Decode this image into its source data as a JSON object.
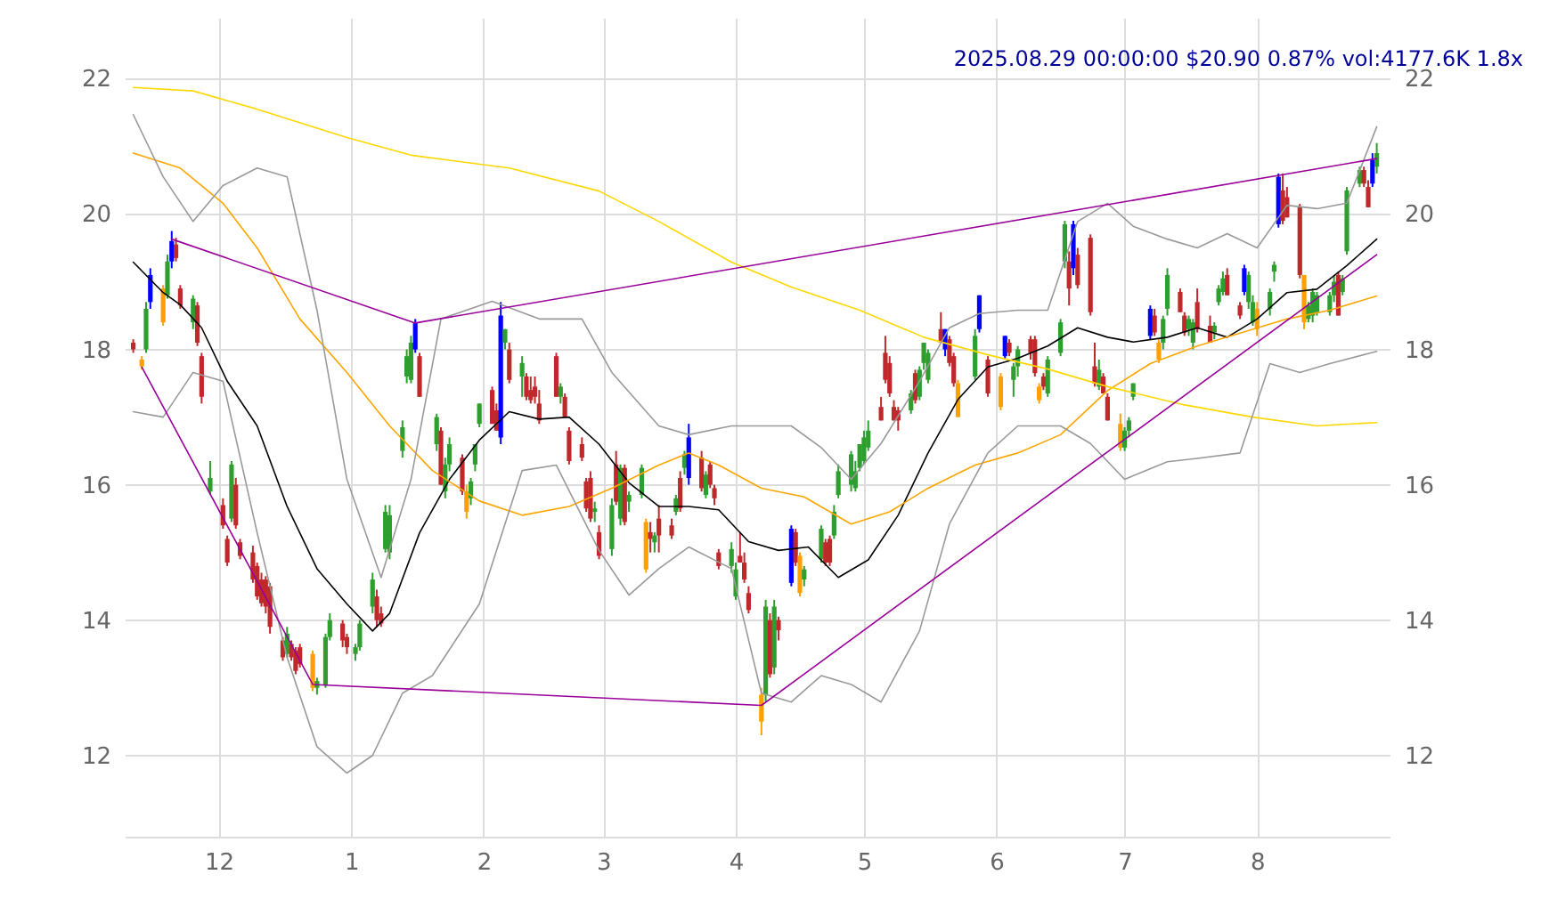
{
  "chart_data": {
    "type": "candlestick",
    "title": "2025.08.29 00:00:00 $20.90 0.87% vol:4177.6K 1.8x",
    "x": [
      "2024-11-11",
      "2024-11-13",
      "2024-11-14",
      "2024-11-15",
      "2024-11-18",
      "2024-11-19",
      "2024-11-20",
      "2024-11-21",
      "2024-11-22",
      "2024-11-25",
      "2024-11-26",
      "2024-11-27",
      "2024-11-29",
      "2024-12-02",
      "2024-12-03",
      "2024-12-04",
      "2024-12-05",
      "2024-12-06",
      "2024-12-09",
      "2024-12-10",
      "2024-12-11",
      "2024-12-12",
      "2024-12-13",
      "2024-12-16",
      "2024-12-17",
      "2024-12-18",
      "2024-12-19",
      "2024-12-20",
      "2024-12-23",
      "2024-12-24",
      "2024-12-26",
      "2024-12-27",
      "2024-12-30",
      "2024-12-31",
      "2025-01-02",
      "2025-01-03",
      "2025-01-06",
      "2025-01-07",
      "2025-01-08",
      "2025-01-09",
      "2025-01-10",
      "2025-01-13",
      "2025-01-14",
      "2025-01-15",
      "2025-01-16",
      "2025-01-17",
      "2025-01-21",
      "2025-01-22",
      "2025-01-23",
      "2025-01-24",
      "2025-01-27",
      "2025-01-28",
      "2025-01-29",
      "2025-01-30",
      "2025-01-31",
      "2025-02-03",
      "2025-02-04",
      "2025-02-05",
      "2025-02-06",
      "2025-02-07",
      "2025-02-10",
      "2025-02-11",
      "2025-02-12",
      "2025-02-13",
      "2025-02-14",
      "2025-02-18",
      "2025-02-19",
      "2025-02-20",
      "2025-02-21",
      "2025-02-24",
      "2025-02-25",
      "2025-02-26",
      "2025-02-27",
      "2025-02-28",
      "2025-03-03",
      "2025-03-04",
      "2025-03-05",
      "2025-03-06",
      "2025-03-07",
      "2025-03-10",
      "2025-03-11",
      "2025-03-12",
      "2025-03-13",
      "2025-03-14",
      "2025-03-17",
      "2025-03-18",
      "2025-03-19",
      "2025-03-20",
      "2025-03-21",
      "2025-03-24",
      "2025-03-25",
      "2025-03-26",
      "2025-03-27",
      "2025-03-28",
      "2025-03-31",
      "2025-04-01",
      "2025-04-02",
      "2025-04-03",
      "2025-04-04",
      "2025-04-07",
      "2025-04-08",
      "2025-04-09",
      "2025-04-10",
      "2025-04-11",
      "2025-04-14",
      "2025-04-15",
      "2025-04-16",
      "2025-04-17",
      "2025-04-21",
      "2025-04-22",
      "2025-04-23",
      "2025-04-24",
      "2025-04-25",
      "2025-04-28",
      "2025-04-29",
      "2025-04-30",
      "2025-05-01",
      "2025-05-02",
      "2025-05-05",
      "2025-05-06",
      "2025-05-07",
      "2025-05-08",
      "2025-05-09",
      "2025-05-12",
      "2025-05-13",
      "2025-05-14",
      "2025-05-15",
      "2025-05-16",
      "2025-05-19",
      "2025-05-20",
      "2025-05-21",
      "2025-05-22",
      "2025-05-23",
      "2025-05-27",
      "2025-05-28",
      "2025-05-30",
      "2025-06-02",
      "2025-06-03",
      "2025-06-04",
      "2025-06-05",
      "2025-06-06",
      "2025-06-09",
      "2025-06-10",
      "2025-06-11",
      "2025-06-12",
      "2025-06-13",
      "2025-06-16",
      "2025-06-17",
      "2025-06-18",
      "2025-06-19",
      "2025-06-20",
      "2025-06-23",
      "2025-06-24",
      "2025-06-25",
      "2025-06-26",
      "2025-06-27",
      "2025-06-30",
      "2025-07-01",
      "2025-07-02",
      "2025-07-03",
      "2025-07-07",
      "2025-07-08",
      "2025-07-09",
      "2025-07-10",
      "2025-07-11",
      "2025-07-14",
      "2025-07-15",
      "2025-07-16",
      "2025-07-17",
      "2025-07-18",
      "2025-07-21",
      "2025-07-22",
      "2025-07-23",
      "2025-07-24",
      "2025-07-25",
      "2025-07-28",
      "2025-07-29",
      "2025-07-30",
      "2025-07-31",
      "2025-08-01",
      "2025-08-04",
      "2025-08-05",
      "2025-08-06",
      "2025-08-07",
      "2025-08-08",
      "2025-08-11",
      "2025-08-12",
      "2025-08-13",
      "2025-08-14",
      "2025-08-15",
      "2025-08-18",
      "2025-08-19",
      "2025-08-20",
      "2025-08-21",
      "2025-08-22",
      "2025-08-25",
      "2025-08-26",
      "2025-08-27",
      "2025-08-28",
      "2025-08-29"
    ],
    "ohlc": [
      [
        18.1,
        18.15,
        17.95,
        18.0
      ],
      [
        17.85,
        17.9,
        17.7,
        17.75
      ],
      [
        18.0,
        18.7,
        17.95,
        18.6
      ],
      [
        18.7,
        19.2,
        18.6,
        19.1
      ],
      [
        18.9,
        18.95,
        18.35,
        18.4
      ],
      [
        18.8,
        19.4,
        18.75,
        19.3
      ],
      [
        19.3,
        19.75,
        19.2,
        19.6
      ],
      [
        19.55,
        19.65,
        19.3,
        19.35
      ],
      [
        18.9,
        18.95,
        18.6,
        18.65
      ],
      [
        18.4,
        18.8,
        18.3,
        18.75
      ],
      [
        18.65,
        18.7,
        18.05,
        18.1
      ],
      [
        17.9,
        17.95,
        17.2,
        17.3
      ],
      [
        15.9,
        16.35,
        15.85,
        16.1
      ],
      [
        15.7,
        15.8,
        15.35,
        15.4
      ],
      [
        15.2,
        15.25,
        14.8,
        14.85
      ],
      [
        15.5,
        16.35,
        15.45,
        16.3
      ],
      [
        16.0,
        16.1,
        15.35,
        15.4
      ],
      [
        15.15,
        15.2,
        14.9,
        14.95
      ],
      [
        15.0,
        15.1,
        14.55,
        14.6
      ],
      [
        14.8,
        14.85,
        14.3,
        14.35
      ],
      [
        14.6,
        14.7,
        14.2,
        14.25
      ],
      [
        14.6,
        14.65,
        14.1,
        14.2
      ],
      [
        14.5,
        14.55,
        13.8,
        13.9
      ],
      [
        13.7,
        13.75,
        13.4,
        13.45
      ],
      [
        13.5,
        13.9,
        13.45,
        13.8
      ],
      [
        13.65,
        13.7,
        13.4,
        13.45
      ],
      [
        13.55,
        13.6,
        13.2,
        13.25
      ],
      [
        13.6,
        13.65,
        13.3,
        13.35
      ],
      [
        13.5,
        13.55,
        12.95,
        13.0
      ],
      [
        13.0,
        13.15,
        12.9,
        13.1
      ],
      [
        13.05,
        13.8,
        13.0,
        13.75
      ],
      [
        13.75,
        14.1,
        13.7,
        14.0
      ],
      [
        13.95,
        14.0,
        13.6,
        13.7
      ],
      [
        13.75,
        13.8,
        13.5,
        13.6
      ],
      [
        13.5,
        13.65,
        13.4,
        13.6
      ],
      [
        13.6,
        14.0,
        13.55,
        13.95
      ],
      [
        14.2,
        14.7,
        14.1,
        14.6
      ],
      [
        14.35,
        14.45,
        13.9,
        14.0
      ],
      [
        14.1,
        14.2,
        13.9,
        13.95
      ],
      [
        15.05,
        15.7,
        15.0,
        15.6
      ],
      [
        15.0,
        15.7,
        14.9,
        15.55
      ],
      [
        16.5,
        16.95,
        16.4,
        16.85
      ],
      [
        17.6,
        18.0,
        17.5,
        17.9
      ],
      [
        17.55,
        18.2,
        17.5,
        18.1
      ],
      [
        18.0,
        18.45,
        17.95,
        18.4
      ],
      [
        17.9,
        17.95,
        17.3,
        17.3
      ],
      [
        16.6,
        17.05,
        16.5,
        17.0
      ],
      [
        16.8,
        16.85,
        16.0,
        16.0
      ],
      [
        15.9,
        16.4,
        15.8,
        16.3
      ],
      [
        16.3,
        16.7,
        16.2,
        16.6
      ],
      [
        16.4,
        16.45,
        15.85,
        15.9
      ],
      [
        15.9,
        16.0,
        15.5,
        15.6
      ],
      [
        15.8,
        16.1,
        15.7,
        16.05
      ],
      [
        16.3,
        16.6,
        16.2,
        16.6
      ],
      [
        16.9,
        17.2,
        16.85,
        17.2
      ],
      [
        17.4,
        17.45,
        16.9,
        16.9
      ],
      [
        17.1,
        17.2,
        16.8,
        16.8
      ],
      [
        16.7,
        18.7,
        16.6,
        18.5
      ],
      [
        18.1,
        18.3,
        18.0,
        18.3
      ],
      [
        18.0,
        18.1,
        17.5,
        17.55
      ],
      [
        17.6,
        17.9,
        17.3,
        17.8
      ],
      [
        17.6,
        17.65,
        17.25,
        17.3
      ],
      [
        17.4,
        17.6,
        17.2,
        17.25
      ],
      [
        17.45,
        17.6,
        17.2,
        17.3
      ],
      [
        17.2,
        17.4,
        16.9,
        16.95
      ],
      [
        17.9,
        17.95,
        17.3,
        17.3
      ],
      [
        17.3,
        17.5,
        17.2,
        17.45
      ],
      [
        17.3,
        17.35,
        17.0,
        17.0
      ],
      [
        16.8,
        16.85,
        16.3,
        16.35
      ],
      [
        16.6,
        16.7,
        16.35,
        16.4
      ],
      [
        16.05,
        16.1,
        15.6,
        15.65
      ],
      [
        16.1,
        16.2,
        15.45,
        15.5
      ],
      [
        15.6,
        15.75,
        15.45,
        15.65
      ],
      [
        15.3,
        15.4,
        14.9,
        14.95
      ],
      [
        15.05,
        15.8,
        14.95,
        15.7
      ],
      [
        16.3,
        16.5,
        15.7,
        15.75
      ],
      [
        15.5,
        16.3,
        15.4,
        16.25
      ],
      [
        16.25,
        16.3,
        15.4,
        15.45
      ],
      [
        15.75,
        15.9,
        15.6,
        15.85
      ],
      [
        15.85,
        16.3,
        15.8,
        16.25
      ],
      [
        15.45,
        15.5,
        14.7,
        14.75
      ],
      [
        15.3,
        15.45,
        15.0,
        15.2
      ],
      [
        15.15,
        15.3,
        15.0,
        15.25
      ],
      [
        15.5,
        15.7,
        15.0,
        15.25
      ],
      [
        15.4,
        15.5,
        15.2,
        15.25
      ],
      [
        15.6,
        15.85,
        15.55,
        15.8
      ],
      [
        16.1,
        16.2,
        15.6,
        15.65
      ],
      [
        16.25,
        16.5,
        16.15,
        16.45
      ],
      [
        16.1,
        16.9,
        16.0,
        16.7
      ],
      [
        16.4,
        16.5,
        15.9,
        15.95
      ],
      [
        15.85,
        16.2,
        15.8,
        16.15
      ],
      [
        16.3,
        16.35,
        15.95,
        16.0
      ],
      [
        15.95,
        16.0,
        15.7,
        15.8
      ],
      [
        15.0,
        15.05,
        14.75,
        14.8
      ],
      [
        14.8,
        15.15,
        14.7,
        15.05
      ],
      [
        14.35,
        14.85,
        14.3,
        14.75
      ],
      [
        14.95,
        15.3,
        14.85,
        14.85
      ],
      [
        14.85,
        15.0,
        14.55,
        14.6
      ],
      [
        14.4,
        14.5,
        14.1,
        14.15
      ],
      [
        12.9,
        13.0,
        12.3,
        12.5
      ],
      [
        12.9,
        14.3,
        12.8,
        14.2
      ],
      [
        14.0,
        14.1,
        13.15,
        13.2
      ],
      [
        13.3,
        14.3,
        13.2,
        14.2
      ],
      [
        14.0,
        14.05,
        13.7,
        13.85
      ],
      [
        14.55,
        15.4,
        14.5,
        15.35
      ],
      [
        15.3,
        15.35,
        14.8,
        14.85
      ],
      [
        14.95,
        15.0,
        14.35,
        14.4
      ],
      [
        14.6,
        14.8,
        14.5,
        14.75
      ],
      [
        14.9,
        15.4,
        14.85,
        15.35
      ],
      [
        15.15,
        15.2,
        14.8,
        14.85
      ],
      [
        15.2,
        15.25,
        14.8,
        14.85
      ],
      [
        15.25,
        15.7,
        15.2,
        15.6
      ],
      [
        15.85,
        16.3,
        15.8,
        16.2
      ],
      [
        16.0,
        16.5,
        15.9,
        16.45
      ],
      [
        15.95,
        16.35,
        15.9,
        16.2
      ],
      [
        16.25,
        16.6,
        16.2,
        16.6
      ],
      [
        16.35,
        16.8,
        16.3,
        16.7
      ],
      [
        16.55,
        16.95,
        16.5,
        16.8
      ],
      [
        17.15,
        17.3,
        16.95,
        16.95
      ],
      [
        17.95,
        18.2,
        17.5,
        17.55
      ],
      [
        17.8,
        17.9,
        17.3,
        17.35
      ],
      [
        17.15,
        17.25,
        16.95,
        16.95
      ],
      [
        17.1,
        17.15,
        16.8,
        16.95
      ],
      [
        17.1,
        17.4,
        17.05,
        17.35
      ],
      [
        17.65,
        17.7,
        17.2,
        17.25
      ],
      [
        17.3,
        17.75,
        17.25,
        17.7
      ],
      [
        17.8,
        18.1,
        17.7,
        18.1
      ],
      [
        17.55,
        18.0,
        17.5,
        17.95
      ],
      [
        18.3,
        18.55,
        18.1,
        18.1
      ],
      [
        18.0,
        18.3,
        17.9,
        18.3
      ],
      [
        18.15,
        18.2,
        17.75,
        17.8
      ],
      [
        17.9,
        17.95,
        17.45,
        17.5
      ],
      [
        17.5,
        17.55,
        17.0,
        17.0
      ],
      [
        17.6,
        18.3,
        17.55,
        18.2
      ],
      [
        18.3,
        18.8,
        18.25,
        18.8
      ],
      [
        17.85,
        17.9,
        17.3,
        17.35
      ],
      [
        17.6,
        17.65,
        17.1,
        17.15
      ],
      [
        17.9,
        18.2,
        17.85,
        18.2
      ],
      [
        18.1,
        18.15,
        17.9,
        17.95
      ],
      [
        17.55,
        17.8,
        17.3,
        17.75
      ],
      [
        17.75,
        18.05,
        17.6,
        18.0
      ],
      [
        18.15,
        18.2,
        17.85,
        17.95
      ],
      [
        18.15,
        18.2,
        17.6,
        17.65
      ],
      [
        17.45,
        17.5,
        17.2,
        17.25
      ],
      [
        17.6,
        17.65,
        17.4,
        17.45
      ],
      [
        17.35,
        17.9,
        17.3,
        17.85
      ],
      [
        17.95,
        18.45,
        17.9,
        18.4
      ],
      [
        19.3,
        19.9,
        19.2,
        19.85
      ],
      [
        19.3,
        19.45,
        18.65,
        18.9
      ],
      [
        19.2,
        19.9,
        19.1,
        19.85
      ],
      [
        19.4,
        19.5,
        18.9,
        18.95
      ],
      [
        19.65,
        19.7,
        18.5,
        18.55
      ],
      [
        17.75,
        18.1,
        17.45,
        17.5
      ],
      [
        17.45,
        17.85,
        17.4,
        17.7
      ],
      [
        17.6,
        17.65,
        17.35,
        17.35
      ],
      [
        17.3,
        17.35,
        16.95,
        16.95
      ],
      [
        16.9,
        17.05,
        16.5,
        16.55
      ],
      [
        16.55,
        16.85,
        16.5,
        16.8
      ],
      [
        16.8,
        17.0,
        16.7,
        16.95
      ],
      [
        17.3,
        17.5,
        17.25,
        17.5
      ],
      [
        18.2,
        18.65,
        18.15,
        18.6
      ],
      [
        18.5,
        18.6,
        18.2,
        18.25
      ],
      [
        18.1,
        18.15,
        17.8,
        17.85
      ],
      [
        18.1,
        18.5,
        18.0,
        18.45
      ],
      [
        18.6,
        19.2,
        18.5,
        19.1
      ],
      [
        18.85,
        18.9,
        18.55,
        18.55
      ],
      [
        18.5,
        18.55,
        18.2,
        18.25
      ],
      [
        18.3,
        18.5,
        18.2,
        18.45
      ],
      [
        18.1,
        18.45,
        18.0,
        18.4
      ],
      [
        18.7,
        18.9,
        18.25,
        18.3
      ],
      [
        18.35,
        18.5,
        18.1,
        18.1
      ],
      [
        18.25,
        18.4,
        18.15,
        18.35
      ],
      [
        18.7,
        18.95,
        18.65,
        18.9
      ],
      [
        18.85,
        19.15,
        18.8,
        19.05
      ],
      [
        19.1,
        19.2,
        18.8,
        18.8
      ],
      [
        18.65,
        18.7,
        18.45,
        18.5
      ],
      [
        18.85,
        19.25,
        18.8,
        19.2
      ],
      [
        18.7,
        19.15,
        18.6,
        19.1
      ],
      [
        18.4,
        18.8,
        18.35,
        18.7
      ],
      [
        18.6,
        18.7,
        18.2,
        18.3
      ],
      [
        18.6,
        18.9,
        18.5,
        18.85
      ],
      [
        19.15,
        19.3,
        19.0,
        19.25
      ],
      [
        19.85,
        20.6,
        19.8,
        20.55
      ],
      [
        20.35,
        20.6,
        19.85,
        19.9
      ],
      [
        20.25,
        20.4,
        19.95,
        19.95
      ],
      [
        20.1,
        20.15,
        19.05,
        19.1
      ],
      [
        19.1,
        19.1,
        18.3,
        18.4
      ],
      [
        18.45,
        18.7,
        18.4,
        18.65
      ],
      [
        18.5,
        18.9,
        18.4,
        18.85
      ],
      [
        18.55,
        18.85,
        18.5,
        18.8
      ],
      [
        18.55,
        18.85,
        18.5,
        18.8
      ],
      [
        18.8,
        19.1,
        18.7,
        19.0
      ],
      [
        19.1,
        19.15,
        18.5,
        18.5
      ],
      [
        18.85,
        19.1,
        18.8,
        19.05
      ],
      [
        19.45,
        20.4,
        19.4,
        20.35
      ],
      [
        20.45,
        20.7,
        20.4,
        20.65
      ],
      [
        20.65,
        20.7,
        20.4,
        20.45
      ],
      [
        20.4,
        20.5,
        20.1,
        20.1
      ],
      [
        20.45,
        20.9,
        20.4,
        20.8
      ],
      [
        20.7,
        21.05,
        20.6,
        20.9
      ]
    ],
    "colors": [
      "#c0292b",
      "#ff9f00",
      "#2e9e2e",
      "#0000ff",
      "#ff9f00",
      "#2e9e2e",
      "#0000ff",
      "#c0292b",
      "#c0292b",
      "#2e9e2e",
      "#c0292b",
      "#c0292b",
      "#2e9e2e",
      "#c0292b",
      "#c0292b",
      "#2e9e2e",
      "#c0292b",
      "#c0292b",
      "#c0292b",
      "#c0292b",
      "#c0292b",
      "#c0292b",
      "#c0292b",
      "#c0292b",
      "#2e9e2e",
      "#c0292b",
      "#c0292b",
      "#c0292b",
      "#ff9f00",
      "#2e9e2e",
      "#2e9e2e",
      "#2e9e2e",
      "#c0292b",
      "#c0292b",
      "#2e9e2e",
      "#2e9e2e",
      "#2e9e2e",
      "#c0292b",
      "#c0292b",
      "#2e9e2e",
      "#2e9e2e",
      "#2e9e2e",
      "#2e9e2e",
      "#2e9e2e",
      "#0000ff",
      "#c0292b",
      "#2e9e2e",
      "#c0292b",
      "#2e9e2e",
      "#2e9e2e",
      "#c0292b",
      "#ff9f00",
      "#2e9e2e",
      "#2e9e2e",
      "#2e9e2e",
      "#c0292b",
      "#c0292b",
      "#0000ff",
      "#2e9e2e",
      "#c0292b",
      "#2e9e2e",
      "#c0292b",
      "#c0292b",
      "#c0292b",
      "#c0292b",
      "#c0292b",
      "#2e9e2e",
      "#c0292b",
      "#c0292b",
      "#c0292b",
      "#c0292b",
      "#c0292b",
      "#2e9e2e",
      "#c0292b",
      "#2e9e2e",
      "#c0292b",
      "#2e9e2e",
      "#c0292b",
      "#2e9e2e",
      "#2e9e2e",
      "#ff9f00",
      "#c0292b",
      "#2e9e2e",
      "#c0292b",
      "#c0292b",
      "#2e9e2e",
      "#c0292b",
      "#2e9e2e",
      "#0000ff",
      "#c0292b",
      "#2e9e2e",
      "#c0292b",
      "#c0292b",
      "#c0292b",
      "#2e9e2e",
      "#2e9e2e",
      "#c0292b",
      "#c0292b",
      "#c0292b",
      "#ff9f00",
      "#2e9e2e",
      "#c0292b",
      "#2e9e2e",
      "#c0292b",
      "#0000ff",
      "#c0292b",
      "#ff9f00",
      "#2e9e2e",
      "#2e9e2e",
      "#c0292b",
      "#c0292b",
      "#2e9e2e",
      "#2e9e2e",
      "#2e9e2e",
      "#2e9e2e",
      "#2e9e2e",
      "#2e9e2e",
      "#2e9e2e",
      "#c0292b",
      "#c0292b",
      "#c0292b",
      "#c0292b",
      "#c0292b",
      "#2e9e2e",
      "#c0292b",
      "#2e9e2e",
      "#2e9e2e",
      "#2e9e2e",
      "#c0292b",
      "#0000ff",
      "#c0292b",
      "#c0292b",
      "#ff9f00",
      "#2e9e2e",
      "#0000ff",
      "#c0292b",
      "#ff9f00",
      "#0000ff",
      "#c0292b",
      "#2e9e2e",
      "#2e9e2e",
      "#c0292b",
      "#c0292b",
      "#ff9f00",
      "#c0292b",
      "#2e9e2e",
      "#2e9e2e",
      "#2e9e2e",
      "#c0292b",
      "#0000ff",
      "#c0292b",
      "#c0292b",
      "#c0292b",
      "#2e9e2e",
      "#c0292b",
      "#c0292b",
      "#ff9f00",
      "#2e9e2e",
      "#2e9e2e",
      "#2e9e2e",
      "#0000ff",
      "#c0292b",
      "#ff9f00",
      "#2e9e2e",
      "#2e9e2e",
      "#c0292b",
      "#c0292b",
      "#2e9e2e",
      "#2e9e2e",
      "#c0292b",
      "#c0292b",
      "#2e9e2e",
      "#2e9e2e",
      "#2e9e2e",
      "#c0292b",
      "#c0292b",
      "#0000ff",
      "#2e9e2e",
      "#2e9e2e",
      "#ff9f00",
      "#2e9e2e",
      "#2e9e2e",
      "#0000ff",
      "#c0292b",
      "#c0292b",
      "#c0292b",
      "#ff9f00",
      "#2e9e2e",
      "#2e9e2e",
      "#2e9e2e",
      "#2e9e2e",
      "#2e9e2e",
      "#c0292b",
      "#2e9e2e",
      "#2e9e2e",
      "#2e9e2e",
      "#c0292b",
      "#c0292b",
      "#0000ff",
      "#2e9e2e"
    ],
    "series": [
      {
        "type": "line",
        "color": "#000000",
        "x": [
          "2024-11-11",
          "2024-11-18",
          "2024-11-22",
          "2024-11-27",
          "2024-12-03",
          "2024-12-10",
          "2024-12-17",
          "2024-12-24",
          "2024-12-31",
          "2025-01-06",
          "2025-01-10",
          "2025-01-17",
          "2025-01-24",
          "2025-01-31",
          "2025-02-07",
          "2025-02-14",
          "2025-02-21",
          "2025-02-28",
          "2025-03-07",
          "2025-03-14",
          "2025-03-21",
          "2025-03-28",
          "2025-04-04",
          "2025-04-11",
          "2025-04-18",
          "2025-04-25",
          "2025-05-02",
          "2025-05-09",
          "2025-05-16",
          "2025-05-23",
          "2025-05-30",
          "2025-06-06",
          "2025-06-13",
          "2025-06-20",
          "2025-06-27",
          "2025-07-03",
          "2025-07-11",
          "2025-07-18",
          "2025-07-25",
          "2025-08-01",
          "2025-08-08",
          "2025-08-15",
          "2025-08-22",
          "2025-08-29"
        ],
        "values": [
          19.29,
          18.84,
          18.66,
          18.32,
          17.53,
          16.87,
          15.68,
          14.76,
          14.24,
          13.84,
          14.1,
          15.29,
          16.08,
          16.66,
          17.08,
          16.97,
          17.0,
          16.6,
          16.03,
          15.68,
          15.68,
          15.63,
          15.16,
          15.03,
          15.08,
          14.63,
          14.89,
          15.55,
          16.47,
          17.26,
          17.74,
          17.87,
          18.05,
          18.32,
          18.18,
          18.11,
          18.18,
          18.32,
          18.18,
          18.45,
          18.84,
          18.89,
          19.24,
          19.63
        ]
      },
      {
        "type": "line",
        "color": "#ffa500",
        "x": [
          "2024-11-11",
          "2024-11-22",
          "2024-12-02",
          "2024-12-10",
          "2024-12-20",
          "2024-12-31",
          "2025-01-10",
          "2025-01-20",
          "2025-01-31",
          "2025-02-10",
          "2025-02-21",
          "2025-03-03",
          "2025-03-14",
          "2025-03-21",
          "2025-03-28",
          "2025-04-07",
          "2025-04-17",
          "2025-04-28",
          "2025-05-07",
          "2025-05-16",
          "2025-05-27",
          "2025-06-06",
          "2025-06-16",
          "2025-06-27",
          "2025-07-07",
          "2025-07-18",
          "2025-07-28",
          "2025-08-08",
          "2025-08-18",
          "2025-08-29"
        ],
        "values": [
          20.9,
          20.68,
          20.16,
          19.5,
          18.45,
          17.66,
          16.87,
          16.21,
          15.76,
          15.55,
          15.68,
          15.95,
          16.29,
          16.47,
          16.29,
          15.95,
          15.82,
          15.42,
          15.6,
          15.95,
          16.29,
          16.47,
          16.74,
          17.39,
          17.79,
          18.05,
          18.24,
          18.45,
          18.58,
          18.79
        ]
      },
      {
        "type": "line",
        "color": "#ffd700",
        "x": [
          "2024-11-11",
          "2024-11-25",
          "2024-12-10",
          "2024-12-31",
          "2025-01-15",
          "2025-02-07",
          "2025-02-28",
          "2025-03-14",
          "2025-03-31",
          "2025-04-14",
          "2025-04-30",
          "2025-05-15",
          "2025-05-30",
          "2025-06-13",
          "2025-06-27",
          "2025-07-15",
          "2025-07-31",
          "2025-08-15",
          "2025-08-29"
        ],
        "values": [
          21.87,
          21.82,
          21.55,
          21.13,
          20.87,
          20.68,
          20.34,
          19.89,
          19.29,
          18.92,
          18.58,
          18.18,
          17.92,
          17.71,
          17.45,
          17.18,
          17.0,
          16.87,
          16.92
        ]
      },
      {
        "type": "line",
        "color": "#999999",
        "x": [
          "2024-11-11",
          "2024-11-18",
          "2024-11-25",
          "2024-12-02",
          "2024-12-10",
          "2024-12-17",
          "2024-12-24",
          "2024-12-31",
          "2025-01-08",
          "2025-01-15",
          "2025-01-22",
          "2025-02-03",
          "2025-02-14",
          "2025-02-24",
          "2025-03-03",
          "2025-03-14",
          "2025-03-21",
          "2025-03-31",
          "2025-04-07",
          "2025-04-14",
          "2025-04-21",
          "2025-04-28",
          "2025-05-05",
          "2025-05-14",
          "2025-05-21",
          "2025-05-28",
          "2025-06-06",
          "2025-06-13",
          "2025-06-20",
          "2025-06-27",
          "2025-07-03",
          "2025-07-11",
          "2025-07-18",
          "2025-07-25",
          "2025-08-01",
          "2025-08-08",
          "2025-08-15",
          "2025-08-22",
          "2025-08-29"
        ],
        "values": [
          21.47,
          20.55,
          19.89,
          20.42,
          20.68,
          20.55,
          18.58,
          16.08,
          14.63,
          16.08,
          18.45,
          18.71,
          18.45,
          18.45,
          17.66,
          16.87,
          16.74,
          16.87,
          16.87,
          16.87,
          16.55,
          16.08,
          16.61,
          17.53,
          18.32,
          18.53,
          18.58,
          18.58,
          19.89,
          20.16,
          19.82,
          19.63,
          19.5,
          19.71,
          19.5,
          20.13,
          20.08,
          20.16,
          21.29
        ]
      },
      {
        "type": "line",
        "color": "#999999",
        "x": [
          "2024-11-11",
          "2024-11-18",
          "2024-11-25",
          "2024-12-02",
          "2024-12-10",
          "2024-12-17",
          "2024-12-24",
          "2024-12-31",
          "2025-01-06",
          "2025-01-13",
          "2025-01-20",
          "2025-01-31",
          "2025-02-10",
          "2025-02-18",
          "2025-02-28",
          "2025-03-07",
          "2025-03-14",
          "2025-03-21",
          "2025-03-31",
          "2025-04-07",
          "2025-04-14",
          "2025-04-21",
          "2025-04-28",
          "2025-05-05",
          "2025-05-14",
          "2025-05-21",
          "2025-05-30",
          "2025-06-06",
          "2025-06-16",
          "2025-06-23",
          "2025-07-01",
          "2025-07-11",
          "2025-07-18",
          "2025-07-28",
          "2025-08-04",
          "2025-08-11",
          "2025-08-18",
          "2025-08-29"
        ],
        "values": [
          17.08,
          17.0,
          17.66,
          17.53,
          15.29,
          13.45,
          12.13,
          11.74,
          12.0,
          12.92,
          13.18,
          14.24,
          16.21,
          16.29,
          15.03,
          14.37,
          14.76,
          15.08,
          14.76,
          12.92,
          12.79,
          13.18,
          13.05,
          12.79,
          13.84,
          15.42,
          16.47,
          16.87,
          16.87,
          16.61,
          16.08,
          16.34,
          16.39,
          16.47,
          17.79,
          17.66,
          17.79,
          17.97
        ]
      },
      {
        "type": "line",
        "color": "#990099",
        "x": [
          "2024-11-20",
          "2025-01-16",
          "2025-08-29"
        ],
        "values": [
          19.63,
          18.39,
          20.82
        ]
      },
      {
        "type": "line",
        "color": "#990099",
        "x": [
          "2024-11-13",
          "2024-12-23",
          "2025-04-07",
          "2025-08-29"
        ],
        "values": [
          17.74,
          13.05,
          12.74,
          19.4
        ]
      }
    ],
    "xlim": [
      "2024-11-09",
      "2025-09-01"
    ],
    "xticks": [
      {
        "value": "2024-12-01",
        "label": "12"
      },
      {
        "value": "2025-01-01",
        "label": "1"
      },
      {
        "value": "2025-02-01",
        "label": "2"
      },
      {
        "value": "2025-03-01",
        "label": "3"
      },
      {
        "value": "2025-04-01",
        "label": "4"
      },
      {
        "value": "2025-05-01",
        "label": "5"
      },
      {
        "value": "2025-06-01",
        "label": "6"
      },
      {
        "value": "2025-07-01",
        "label": "7"
      },
      {
        "value": "2025-08-01",
        "label": "8"
      }
    ],
    "ylim": [
      10.8,
      22.9
    ],
    "yticks": [
      12,
      14,
      16,
      18,
      20,
      22
    ],
    "y2lim": [
      10.8,
      22.9
    ],
    "y2ticks": [
      12,
      14,
      16,
      18,
      20,
      22
    ],
    "grid": true
  }
}
